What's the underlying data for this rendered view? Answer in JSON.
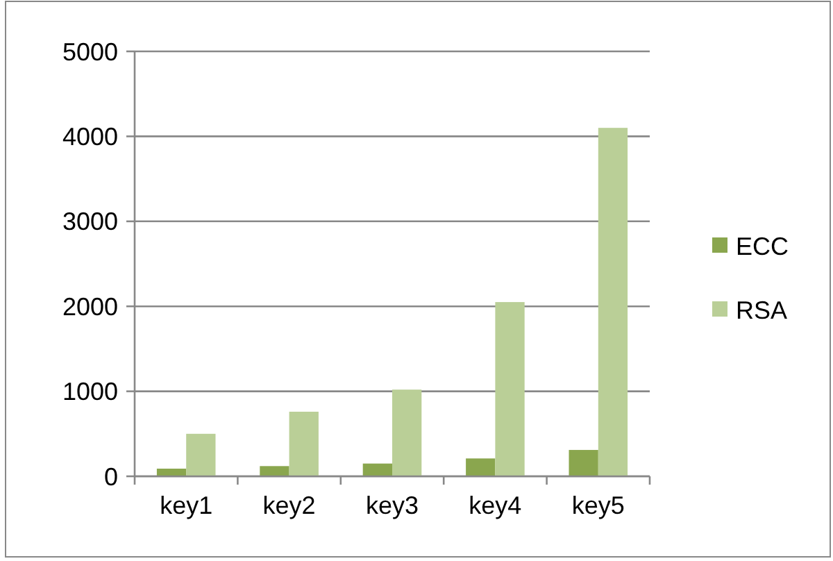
{
  "chart_data": {
    "type": "bar",
    "categories": [
      "key1",
      "key2",
      "key3",
      "key4",
      "key5"
    ],
    "series": [
      {
        "name": "ECC",
        "color": "#8aa64e",
        "values": [
          90,
          120,
          150,
          210,
          310
        ]
      },
      {
        "name": "RSA",
        "color": "#bacf97",
        "values": [
          500,
          760,
          1020,
          2050,
          4100
        ]
      }
    ],
    "ylim": [
      0,
      5000
    ],
    "yticks": [
      0,
      1000,
      2000,
      3000,
      4000,
      5000
    ],
    "grid": "y",
    "legend": "right"
  }
}
